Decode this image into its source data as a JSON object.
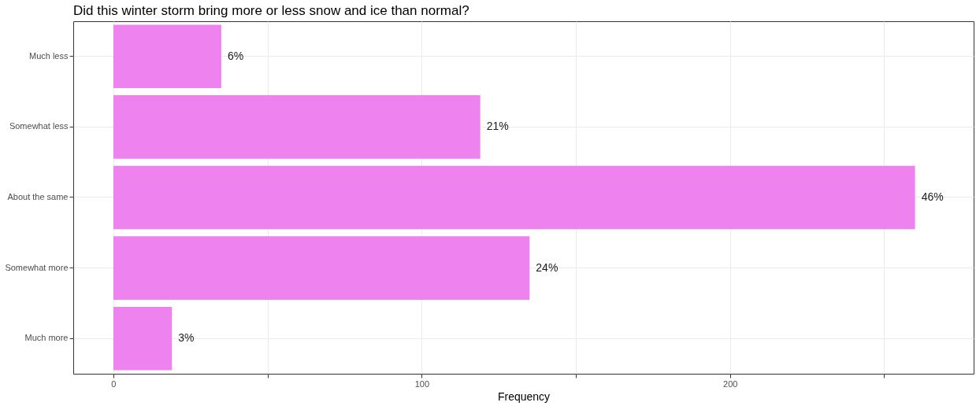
{
  "chart_data": {
    "type": "bar",
    "orientation": "horizontal",
    "title": "Did this winter storm bring more or less snow and ice than normal?",
    "xlabel": "Frequency",
    "categories": [
      "Much less",
      "Somewhat less",
      "About the same",
      "Somewhat more",
      "Much more"
    ],
    "values": [
      35,
      119,
      260,
      135,
      19
    ],
    "annotations": [
      {
        "text": "6%",
        "x": 35,
        "y": "Much less"
      },
      {
        "text": "21%",
        "x": 119,
        "y": "Somewhat less"
      },
      {
        "text": "46%",
        "x": 260,
        "y": "About the same"
      },
      {
        "text": "24%",
        "x": 135,
        "y": "Somewhat more"
      },
      {
        "text": "3%",
        "x": 19,
        "y": "Much more"
      }
    ],
    "color": "#ee82ee",
    "xlim": [
      -13,
      279
    ],
    "xticks": [
      0,
      {
        "value": 50,
        "label": null
      },
      100,
      {
        "value": 150,
        "label": null
      },
      200,
      {
        "value": 250,
        "label": null
      }
    ],
    "grid": true
  }
}
